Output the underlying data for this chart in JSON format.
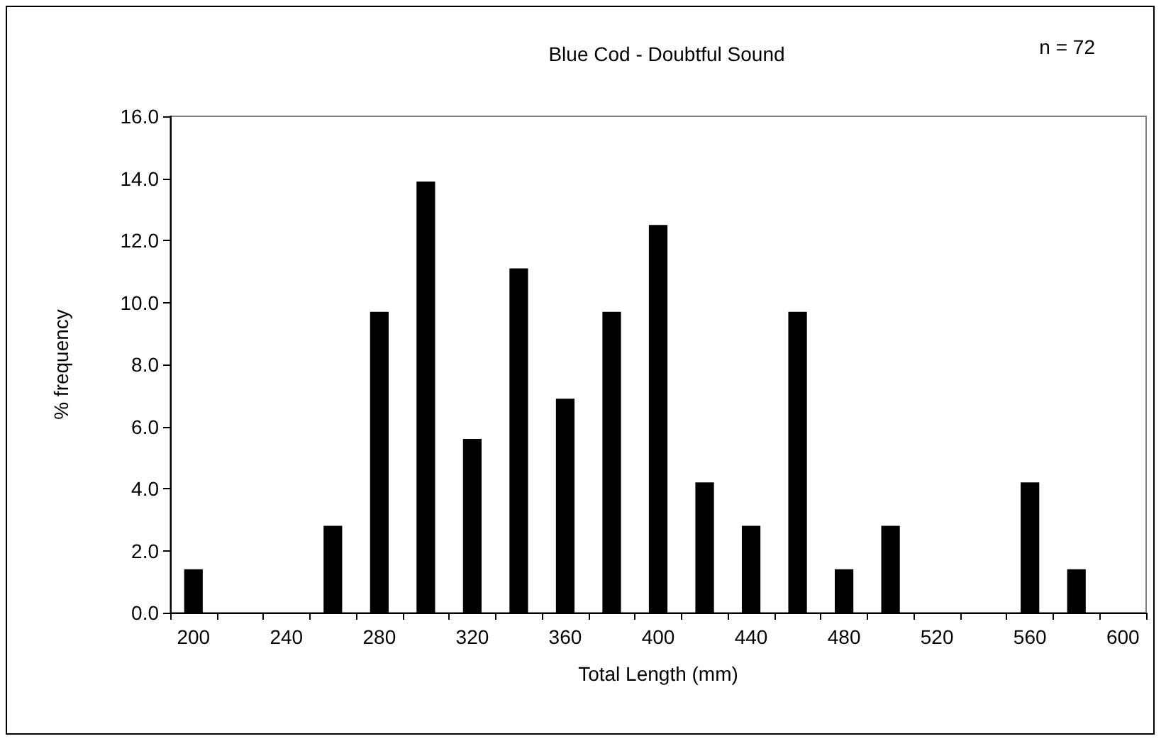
{
  "chart_data": {
    "type": "bar",
    "title": "Blue Cod - Doubtful Sound",
    "xlabel": "Total Length (mm)",
    "ylabel": "% frequency",
    "annotations": [
      "n = 72"
    ],
    "categories": [
      "200",
      null,
      "240",
      null,
      "280",
      null,
      "320",
      null,
      "360",
      null,
      "400",
      null,
      "440",
      null,
      "480",
      null,
      "520",
      null,
      "560",
      null,
      "600"
    ],
    "values": [
      1.4,
      0,
      0,
      2.8,
      9.7,
      13.9,
      5.6,
      11.1,
      6.9,
      9.7,
      12.5,
      4.2,
      2.8,
      9.7,
      1.4,
      2.8,
      0,
      0,
      4.2,
      1.4,
      0
    ],
    "color": "#000000",
    "ylim": [
      0,
      16
    ],
    "yticks": [
      {
        "value": 0,
        "label": "0.0"
      },
      {
        "value": 2,
        "label": "2.0"
      },
      {
        "value": 4,
        "label": "4.0"
      },
      {
        "value": 6,
        "label": "6.0"
      },
      {
        "value": 8,
        "label": "8.0"
      },
      {
        "value": 10,
        "label": "10.0"
      },
      {
        "value": 12,
        "label": "12.0"
      },
      {
        "value": 14,
        "label": "14.0"
      },
      {
        "value": 16,
        "label": "16.0"
      }
    ],
    "grid": false
  }
}
